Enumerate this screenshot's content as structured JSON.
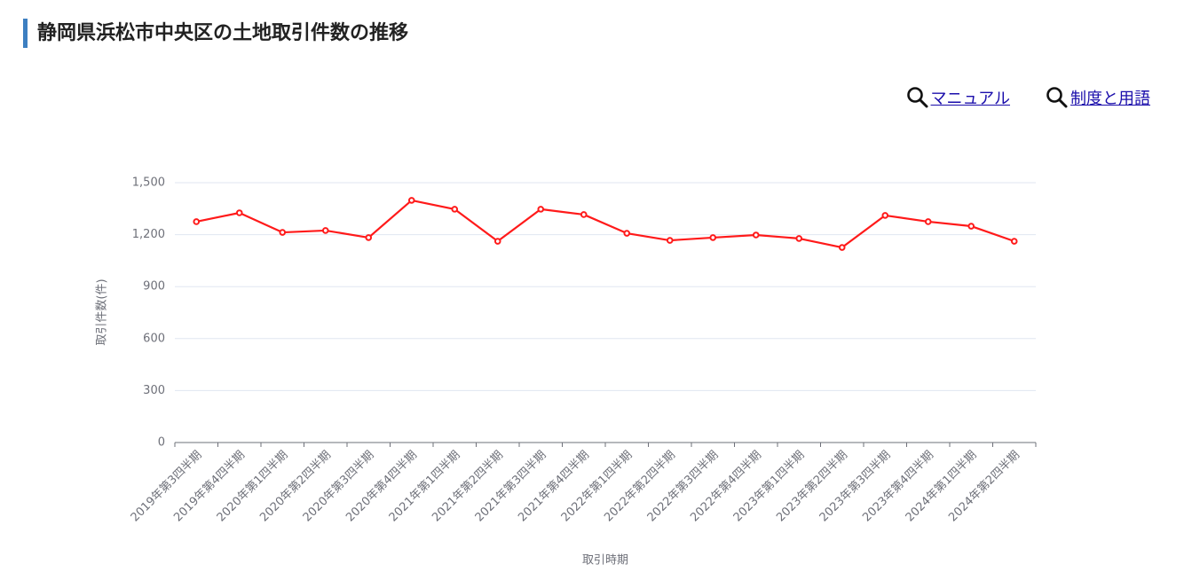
{
  "header": {
    "title": "静岡県浜松市中央区の土地取引件数の推移"
  },
  "links": [
    "マニュアル",
    "制度と用語"
  ],
  "chart_data": {
    "type": "line",
    "y_label": "取引件数(件)",
    "x_label": "取引時期",
    "categories": [
      "2019年第3四半期",
      "2019年第4四半期",
      "2020年第1四半期",
      "2020年第2四半期",
      "2020年第3四半期",
      "2020年第4四半期",
      "2021年第1四半期",
      "2021年第2四半期",
      "2021年第3四半期",
      "2021年第4四半期",
      "2022年第1四半期",
      "2022年第2四半期",
      "2022年第3四半期",
      "2022年第4四半期",
      "2023年第1四半期",
      "2023年第2四半期",
      "2023年第3四半期",
      "2023年第4四半期",
      "2024年第1四半期",
      "2024年第2四半期"
    ],
    "values": [
      1275,
      1326,
      1213,
      1224,
      1183,
      1398,
      1347,
      1162,
      1347,
      1316,
      1208,
      1167,
      1183,
      1198,
      1178,
      1126,
      1311,
      1275,
      1249,
      1162
    ],
    "color": "#ff1a1a",
    "ylim": [
      0,
      1500
    ],
    "yticks": [
      0,
      300,
      600,
      900,
      {
        "value": 1200,
        "label": "1,200"
      },
      {
        "value": 1500,
        "label": "1,500"
      }
    ],
    "grid": true
  }
}
